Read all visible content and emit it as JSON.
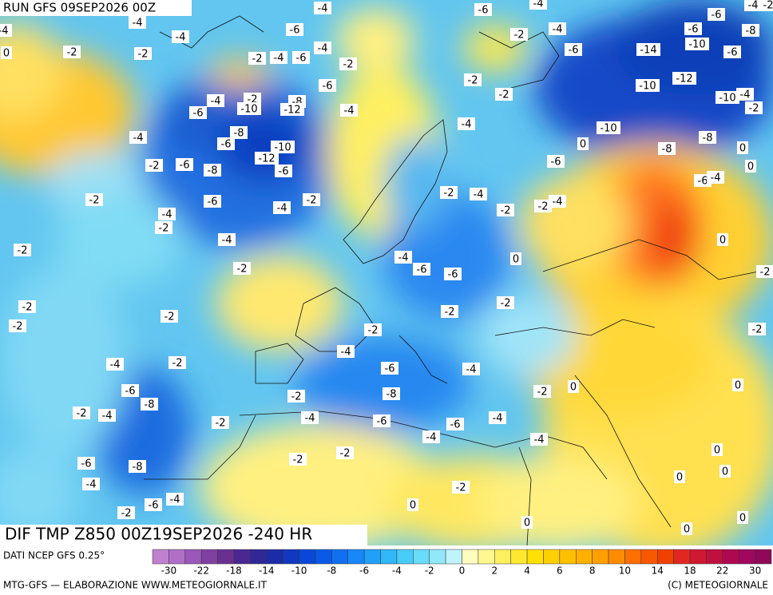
{
  "header": {
    "run": "RUN GFS 09SEP2026 00Z"
  },
  "map": {
    "title": "DIF TMP Z850 00Z19SEP2026 -240 HR",
    "contour_labels": [
      -4,
      -6,
      -4,
      -6,
      -4,
      -2,
      -4,
      -4,
      -4,
      -6,
      -2,
      -4,
      -6,
      -8,
      0,
      -2,
      -2,
      -2,
      -4,
      -6,
      -4,
      -2,
      -6,
      -14,
      -10,
      -6,
      -2,
      -6,
      -10,
      -12,
      -4,
      -10,
      -2,
      -4,
      -2,
      -8,
      -6,
      -10,
      -12,
      -4,
      -2,
      -4,
      -10,
      -4,
      -8,
      -6,
      -10,
      0,
      -8,
      -8,
      0,
      -2,
      -6,
      -8,
      -12,
      -6,
      -6,
      -6,
      -4,
      0,
      -2,
      -6,
      -2,
      -2,
      -4,
      -4,
      -2,
      -2,
      -4,
      -4,
      -2,
      -4,
      0,
      -2,
      -2,
      -4,
      -6,
      -6,
      0,
      -2,
      -2,
      -2,
      -2,
      -2,
      -2,
      -2,
      -2,
      -4,
      -4,
      -2,
      -6,
      -4,
      0,
      -6,
      -2,
      -8,
      -2,
      0,
      -8,
      -2,
      -4,
      -2,
      -4,
      -6,
      -6,
      -4,
      -4,
      -4,
      0,
      -6,
      -8,
      -2,
      -2,
      0,
      -4,
      -2,
      0,
      -2,
      -6,
      -4,
      0,
      0,
      0,
      0
    ]
  },
  "footer": {
    "source": "DATI NCEP GFS 0.25°",
    "credit": "MTG-GFS — ELABORAZIONE WWW.METEOGIORNALE.IT",
    "copyright": "(C) METEOGIORNALE"
  },
  "legend": {
    "colors": [
      "#c080d0",
      "#b070c8",
      "#9a58b8",
      "#8040a0",
      "#6a3090",
      "#4a2890",
      "#302898",
      "#1c2ca8",
      "#1038c0",
      "#0848d8",
      "#0a5ae8",
      "#1070f0",
      "#1888f8",
      "#20a0f8",
      "#30b8f8",
      "#48ccf8",
      "#68dcf8",
      "#90e8f8",
      "#c0f4fc",
      "#fffcc0",
      "#fff890",
      "#fff060",
      "#ffe830",
      "#ffe000",
      "#ffd000",
      "#ffc000",
      "#ffb000",
      "#ffa000",
      "#ff8c00",
      "#ff7000",
      "#f85800",
      "#f04000",
      "#e02820",
      "#d01830",
      "#c01040",
      "#b00850",
      "#a00860",
      "#900858"
    ],
    "labels": [
      -30,
      -22,
      -18,
      -14,
      -10,
      -8,
      -6,
      -4,
      -2,
      0,
      2,
      4,
      6,
      8,
      10,
      14,
      18,
      22,
      30
    ]
  }
}
